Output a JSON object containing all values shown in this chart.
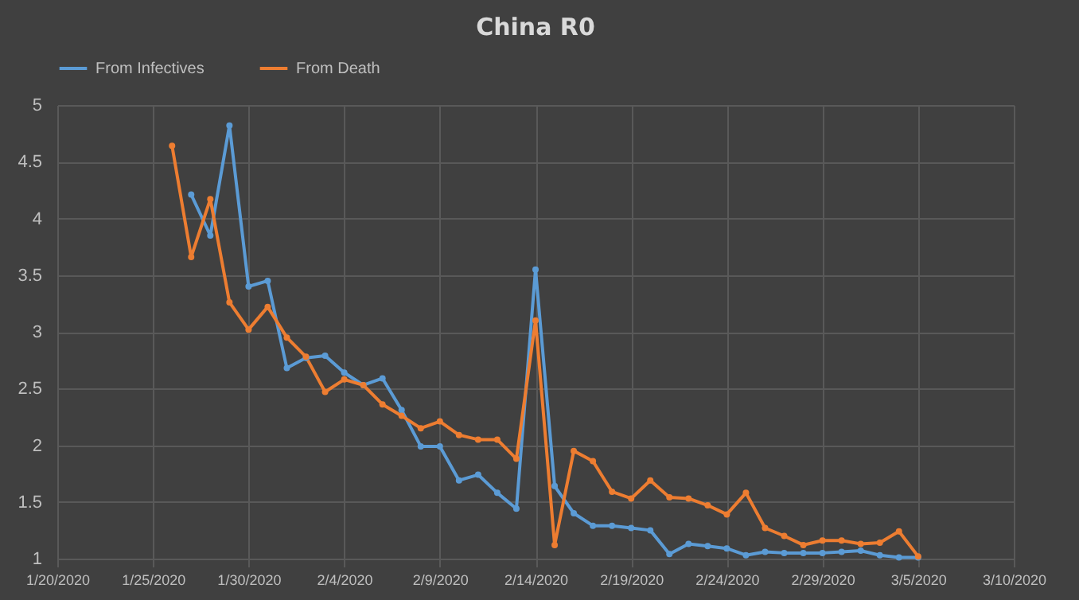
{
  "chart_data": {
    "type": "line",
    "title": "China R0",
    "x": [
      "2020-01-26",
      "2020-01-27",
      "2020-01-28",
      "2020-01-29",
      "2020-01-30",
      "2020-01-31",
      "2020-02-01",
      "2020-02-02",
      "2020-02-03",
      "2020-02-04",
      "2020-02-05",
      "2020-02-06",
      "2020-02-07",
      "2020-02-08",
      "2020-02-09",
      "2020-02-10",
      "2020-02-11",
      "2020-02-12",
      "2020-02-13",
      "2020-02-14",
      "2020-02-15",
      "2020-02-16",
      "2020-02-17",
      "2020-02-18",
      "2020-02-19",
      "2020-02-20",
      "2020-02-21",
      "2020-02-22",
      "2020-02-23",
      "2020-02-24",
      "2020-02-25",
      "2020-02-26",
      "2020-02-27",
      "2020-02-28",
      "2020-02-29",
      "2020-03-01",
      "2020-03-02",
      "2020-03-03",
      "2020-03-04",
      "2020-03-05"
    ],
    "series": [
      {
        "name": "From Infectives",
        "color": "#5b9bd5",
        "values": [
          null,
          4.21,
          3.85,
          4.82,
          3.4,
          3.45,
          2.68,
          2.77,
          2.79,
          2.64,
          2.53,
          2.59,
          2.31,
          1.99,
          1.99,
          1.69,
          1.74,
          1.58,
          1.44,
          3.55,
          1.64,
          1.4,
          1.29,
          1.29,
          1.27,
          1.25,
          1.04,
          1.13,
          1.11,
          1.09,
          1.03,
          1.06,
          1.05,
          1.05,
          1.05,
          1.06,
          1.07,
          1.03,
          1.01,
          1.01
        ]
      },
      {
        "name": "From Death",
        "color": "#ed7d31",
        "values": [
          4.64,
          3.66,
          4.17,
          3.26,
          3.02,
          3.22,
          2.95,
          2.78,
          2.47,
          2.58,
          2.53,
          2.36,
          2.26,
          2.15,
          2.21,
          2.09,
          2.05,
          2.05,
          1.88,
          3.1,
          1.12,
          1.95,
          1.86,
          1.59,
          1.53,
          1.69,
          1.54,
          1.53,
          1.47,
          1.39,
          1.58,
          1.27,
          1.2,
          1.12,
          1.16,
          1.16,
          1.13,
          1.14,
          1.24,
          1.02
        ]
      }
    ],
    "xlim": [
      "2020-01-20",
      "2020-03-10"
    ],
    "xticks": [
      {
        "value": "2020-01-20",
        "label": "1/20/2020"
      },
      {
        "value": "2020-01-25",
        "label": "1/25/2020"
      },
      {
        "value": "2020-01-30",
        "label": "1/30/2020"
      },
      {
        "value": "2020-02-04",
        "label": "2/4/2020"
      },
      {
        "value": "2020-02-09",
        "label": "2/9/2020"
      },
      {
        "value": "2020-02-14",
        "label": "2/14/2020"
      },
      {
        "value": "2020-02-19",
        "label": "2/19/2020"
      },
      {
        "value": "2020-02-24",
        "label": "2/24/2020"
      },
      {
        "value": "2020-02-29",
        "label": "2/29/2020"
      },
      {
        "value": "2020-03-05",
        "label": "3/5/2020"
      },
      {
        "value": "2020-03-10",
        "label": "3/10/2020"
      }
    ],
    "ylim": [
      1,
      5
    ],
    "yticks": [
      1,
      1.5,
      2,
      2.5,
      3,
      3.5,
      4,
      4.5,
      5
    ],
    "grid": true,
    "legend": "top",
    "marker": "circle",
    "line_style": "solid"
  }
}
